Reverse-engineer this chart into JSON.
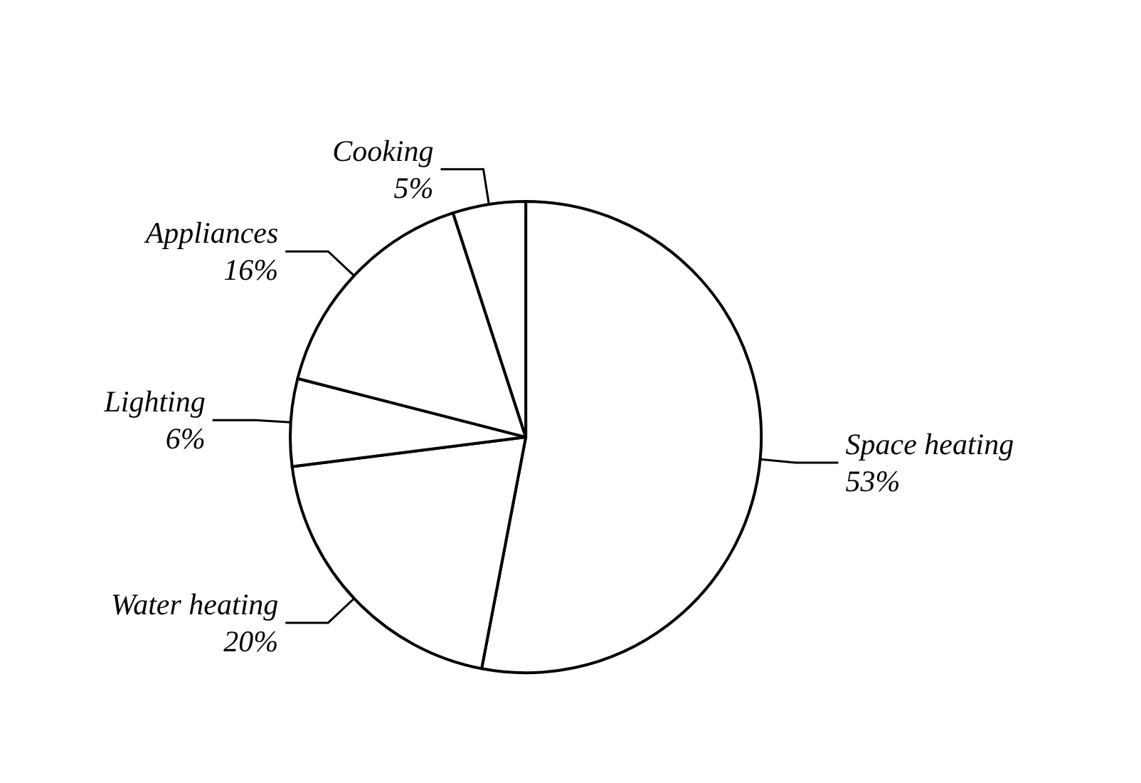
{
  "chart_data": {
    "type": "pie",
    "categories": [
      "Space heating",
      "Water heating",
      "Lighting",
      "Appliances",
      "Cooking"
    ],
    "values": [
      53,
      20,
      6,
      16,
      5
    ],
    "value_labels": [
      "53%",
      "20%",
      "6%",
      "16%",
      "5%"
    ],
    "colors": [
      "#ffffff",
      "#ffffff",
      "#ffffff",
      "#ffffff",
      "#ffffff"
    ],
    "legend": false
  }
}
